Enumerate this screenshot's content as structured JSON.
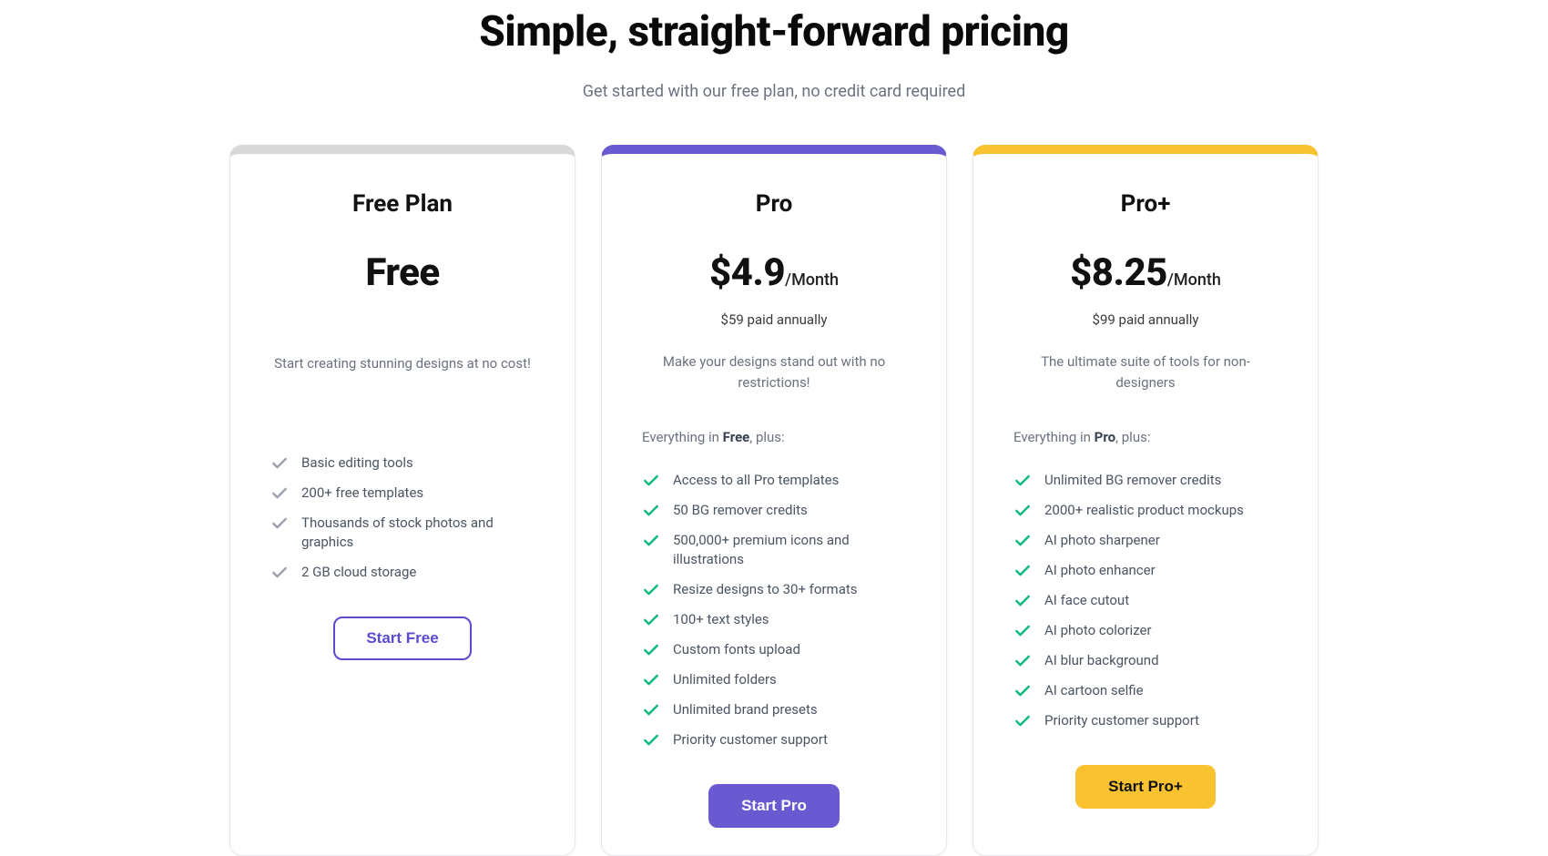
{
  "header": {
    "title": "Simple, straight-forward pricing",
    "subtitle": "Get started with our free plan, no credit card required"
  },
  "colors": {
    "card_border_free": "#d8d8d8",
    "card_border_pro": "#6a5ad1",
    "card_border_proplus": "#f9c230",
    "check_gray": "#9ca3af",
    "check_green": "#10b981",
    "cta_purple": "#6a5ad1",
    "cta_yellow": "#f9c230"
  },
  "plans": [
    {
      "id": "free",
      "name": "Free Plan",
      "price": "Free",
      "period": "",
      "annual": "",
      "tagline": "Start creating stunning designs at no cost!",
      "features_intro_prefix": "",
      "features_intro_bold": "",
      "features_intro_suffix": "",
      "features": [
        "Basic editing tools",
        "200+ free templates",
        "Thousands of stock photos and graphics",
        "2 GB cloud storage"
      ],
      "cta": "Start Free"
    },
    {
      "id": "pro",
      "name": "Pro",
      "price": "$4.9",
      "period": "/Month",
      "annual": "$59 paid annually",
      "tagline": "Make your designs stand out with no restrictions!",
      "features_intro_prefix": "Everything in ",
      "features_intro_bold": "Free",
      "features_intro_suffix": ", plus:",
      "features": [
        "Access to all Pro templates",
        "50 BG remover credits",
        "500,000+ premium icons and illustrations",
        "Resize designs to 30+ formats",
        "100+ text styles",
        "Custom fonts upload",
        "Unlimited folders",
        "Unlimited brand presets",
        "Priority customer support"
      ],
      "cta": "Start Pro"
    },
    {
      "id": "proplus",
      "name": "Pro+",
      "price": "$8.25",
      "period": "/Month",
      "annual": "$99 paid annually",
      "tagline": "The ultimate suite of tools for non-designers",
      "features_intro_prefix": "Everything in ",
      "features_intro_bold": "Pro",
      "features_intro_suffix": ", plus:",
      "features": [
        "Unlimited BG remover credits",
        "2000+ realistic product mockups",
        "AI photo sharpener",
        "AI photo enhancer",
        "AI face cutout",
        "AI photo colorizer",
        "AI blur background",
        "AI cartoon selfie",
        "Priority customer support"
      ],
      "cta": "Start Pro+"
    }
  ]
}
